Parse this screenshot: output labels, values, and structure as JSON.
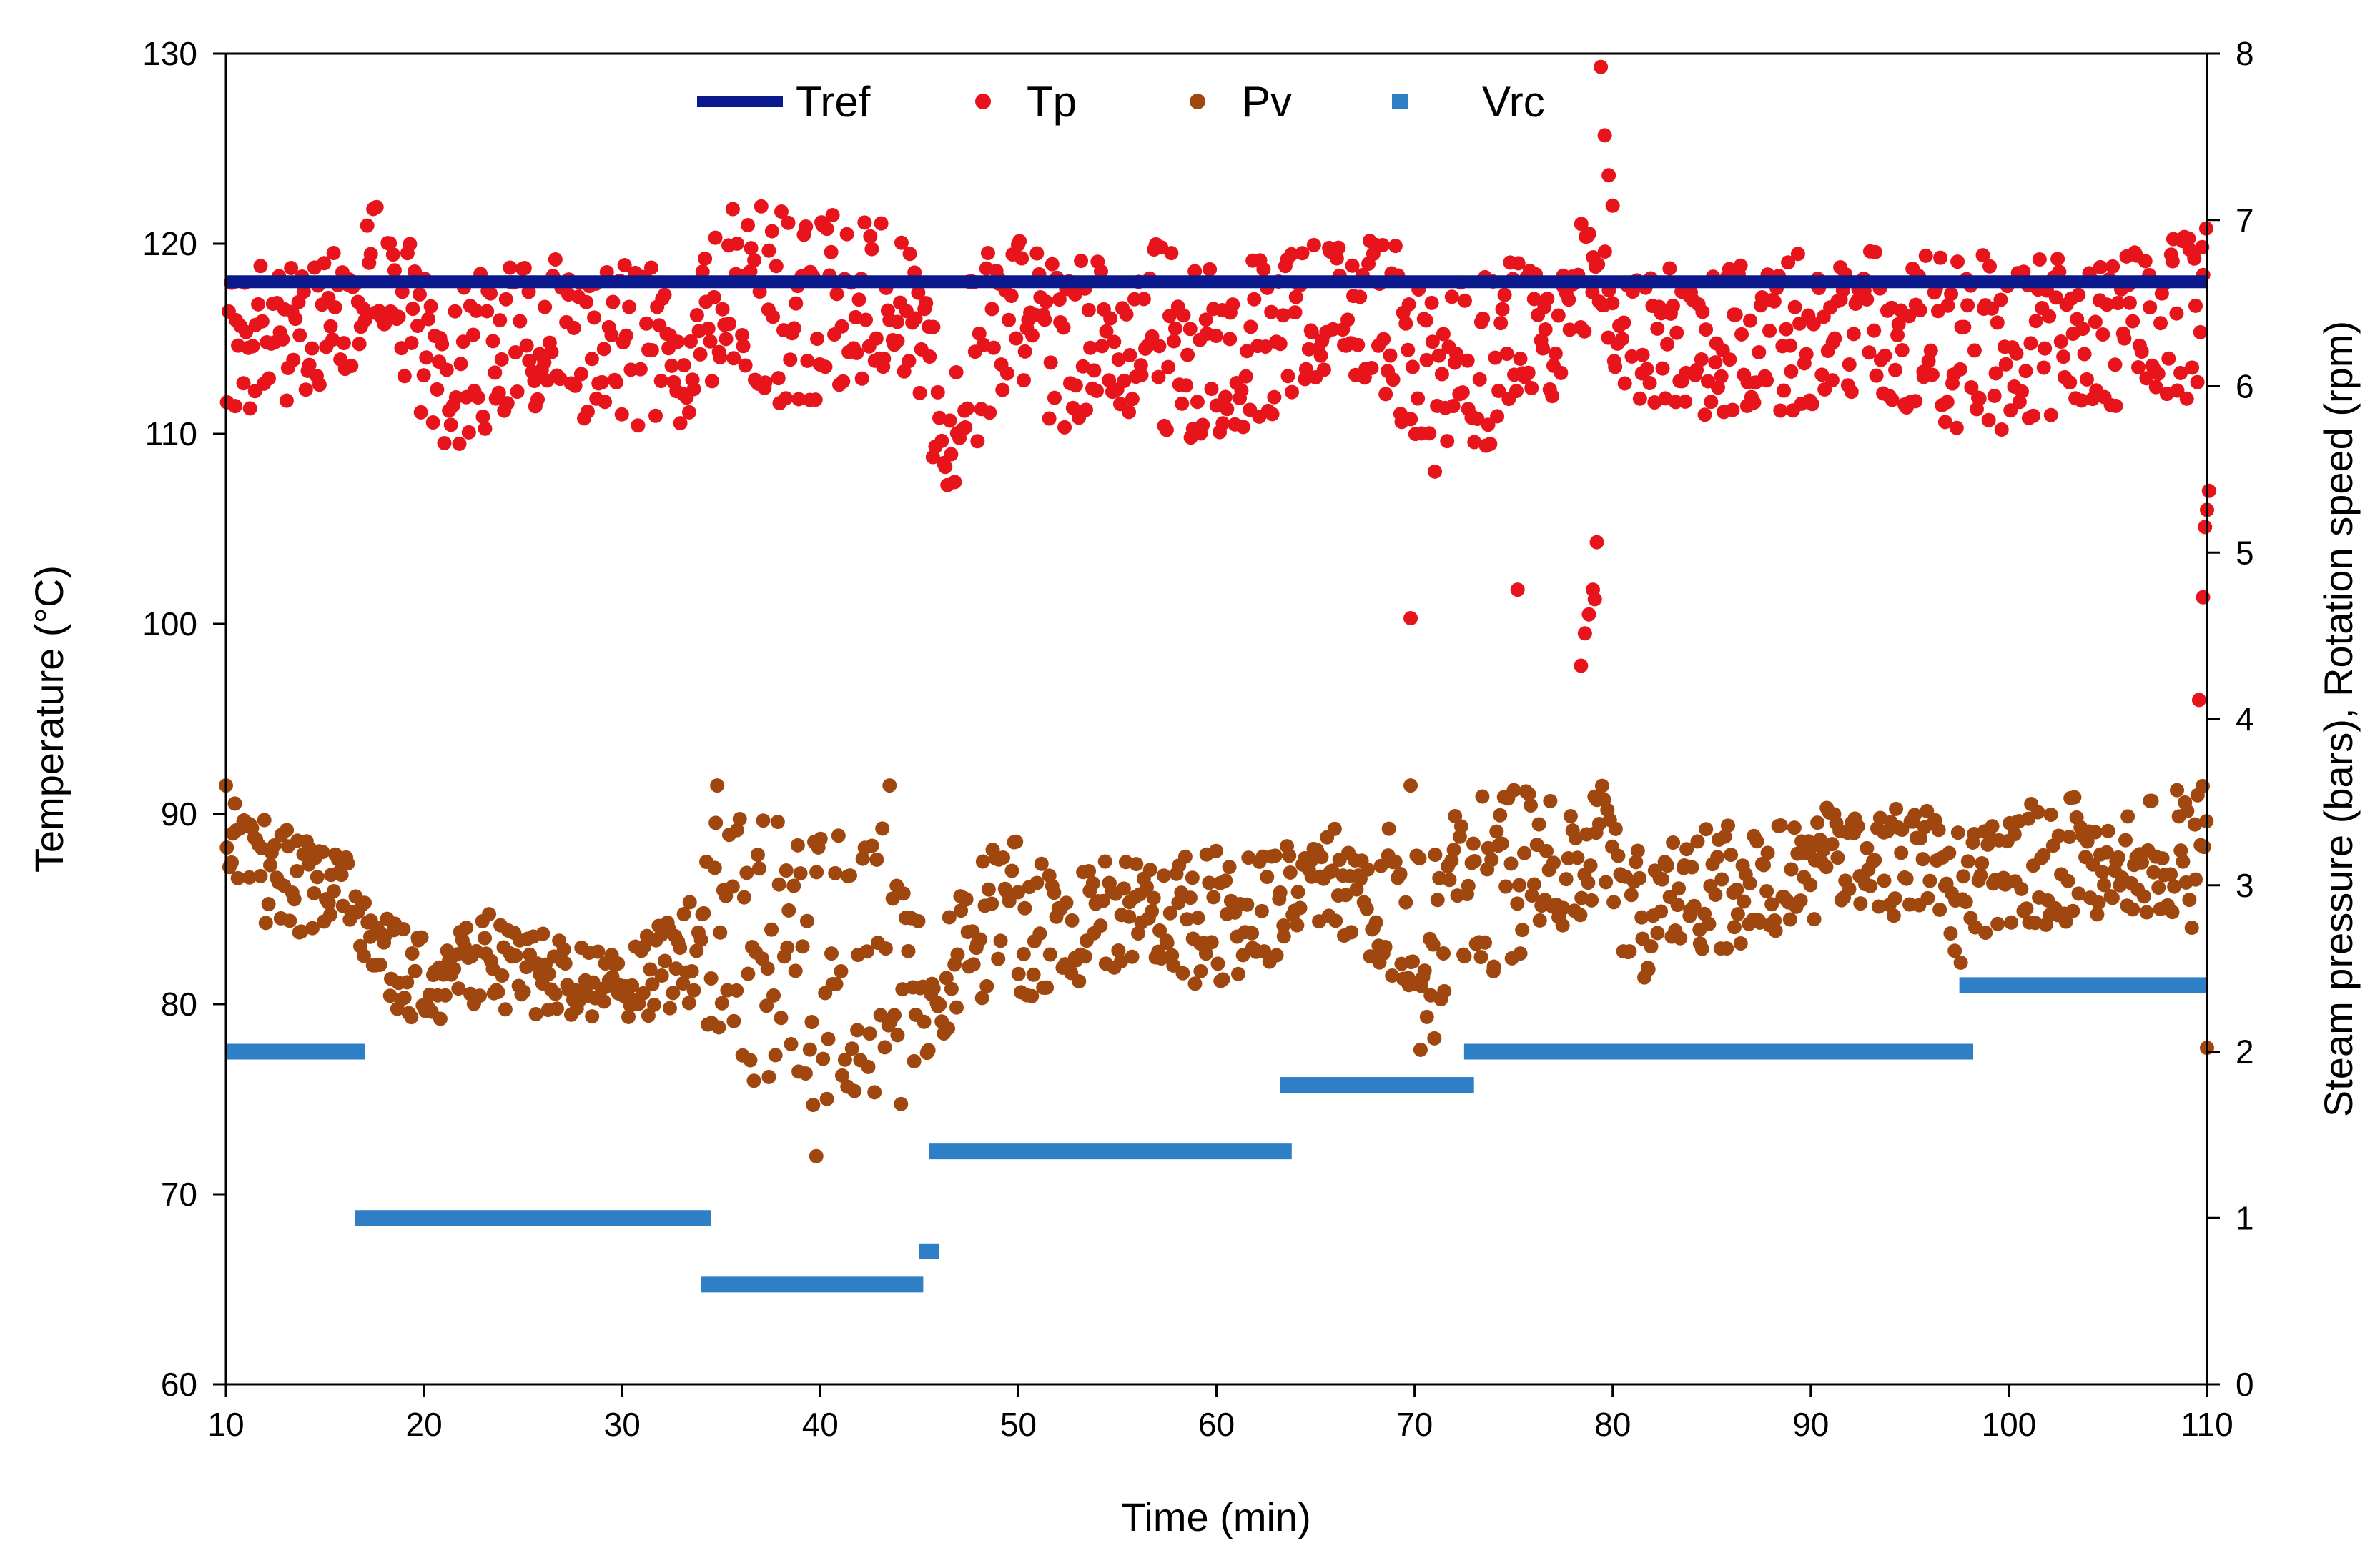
{
  "chart_data": {
    "type": "scatter",
    "title": "",
    "xlabel": "Time (min)",
    "ylabel_left": "Temperature (°C)",
    "ylabel_right": "Steam pressure  (bars),  Rotation  speed  (rpm)",
    "xlim": [
      10,
      110
    ],
    "ylim_left": [
      60,
      130
    ],
    "ylim_right": [
      0,
      8
    ],
    "x_ticks": [
      10,
      20,
      30,
      40,
      50,
      60,
      70,
      80,
      90,
      100,
      110
    ],
    "y_left_ticks": [
      60,
      70,
      80,
      90,
      100,
      110,
      120,
      130
    ],
    "y_right_ticks": [
      0,
      1,
      2,
      3,
      4,
      5,
      6,
      7,
      8
    ],
    "grid": false,
    "legend_position": "top",
    "legend": [
      {
        "name": "Tref",
        "marker": "line",
        "color": "#0a1a8c"
      },
      {
        "name": "Tp",
        "marker": "dot",
        "color": "#e8141c"
      },
      {
        "name": "Pv",
        "marker": "dot",
        "color": "#a0470f"
      },
      {
        "name": "Vrc",
        "marker": "square",
        "color": "#2f7fc6"
      }
    ],
    "series": [
      {
        "name": "Tref",
        "axis": "left",
        "kind": "line",
        "color": "#0a1a8c",
        "x": [
          10,
          110
        ],
        "y": [
          118,
          118
        ]
      },
      {
        "name": "Vrc",
        "axis": "right",
        "kind": "steps",
        "color": "#2f7fc6",
        "segments": [
          {
            "x0": 10,
            "x1": 17,
            "y": 2.0
          },
          {
            "x0": 16.5,
            "x1": 34.5,
            "y": 1.0
          },
          {
            "x0": 34,
            "x1": 45.2,
            "y": 0.6
          },
          {
            "x0": 45,
            "x1": 46,
            "y": 0.8
          },
          {
            "x0": 45.5,
            "x1": 63.8,
            "y": 1.4
          },
          {
            "x0": 63.2,
            "x1": 73,
            "y": 1.8
          },
          {
            "x0": 72.5,
            "x1": 98.2,
            "y": 2.0
          },
          {
            "x0": 97.5,
            "x1": 110,
            "y": 2.4
          }
        ]
      },
      {
        "name": "Tp",
        "axis": "left",
        "kind": "scatter",
        "color": "#e8141c",
        "envelope": [
          [
            10,
            110,
            118.5
          ],
          [
            11,
            111,
            119
          ],
          [
            13,
            111.5,
            119
          ],
          [
            15,
            112,
            120
          ],
          [
            16.5,
            113,
            118.5
          ],
          [
            17.5,
            115,
            122.5
          ],
          [
            19,
            113,
            121
          ],
          [
            20.5,
            109,
            117
          ],
          [
            22,
            109,
            118
          ],
          [
            24,
            111,
            119
          ],
          [
            26,
            111,
            119.5
          ],
          [
            28,
            110,
            118.5
          ],
          [
            30,
            110,
            119
          ],
          [
            32,
            110,
            119
          ],
          [
            34,
            111,
            118.5
          ],
          [
            35,
            114,
            122.5
          ],
          [
            37,
            112,
            122
          ],
          [
            39,
            111,
            122
          ],
          [
            41,
            112,
            121.5
          ],
          [
            43,
            113,
            121.5
          ],
          [
            45,
            112,
            120
          ],
          [
            46,
            106,
            114
          ],
          [
            47.5,
            107,
            118
          ],
          [
            49,
            110,
            121
          ],
          [
            51,
            110,
            120.5
          ],
          [
            53,
            110.5,
            119
          ],
          [
            55,
            111,
            121
          ],
          [
            57,
            110,
            120
          ],
          [
            59,
            109.5,
            119
          ],
          [
            61,
            110,
            119
          ],
          [
            63,
            111,
            119.5
          ],
          [
            65,
            112,
            120
          ],
          [
            67,
            113,
            120.5
          ],
          [
            69,
            111,
            120
          ],
          [
            71,
            108,
            117
          ],
          [
            73,
            109,
            118.5
          ],
          [
            75,
            110,
            119.5
          ],
          [
            77,
            112,
            119.5
          ],
          [
            79,
            116,
            122
          ],
          [
            80.5,
            112,
            118
          ],
          [
            83,
            111,
            119
          ],
          [
            86,
            111,
            119
          ],
          [
            89,
            111,
            119.5
          ],
          [
            92,
            112,
            120
          ],
          [
            95,
            111,
            120
          ],
          [
            98,
            110,
            119.5
          ],
          [
            101,
            110,
            119.5
          ],
          [
            104,
            111,
            120
          ],
          [
            107,
            111,
            120
          ],
          [
            110,
            112,
            121
          ]
        ],
        "outliers": [
          [
            69.8,
            100.3
          ],
          [
            75.2,
            101.8
          ],
          [
            78.4,
            97.8
          ],
          [
            78.6,
            99.5
          ],
          [
            78.8,
            100.5
          ],
          [
            79.0,
            101.8
          ],
          [
            79.1,
            101.3
          ],
          [
            79.2,
            104.3
          ],
          [
            79.4,
            129.3
          ],
          [
            79.6,
            125.7
          ],
          [
            79.8,
            123.6
          ],
          [
            80.0,
            122.0
          ],
          [
            109.6,
            96.0
          ],
          [
            109.8,
            101.4
          ],
          [
            109.9,
            105.1
          ],
          [
            110.0,
            106.0
          ],
          [
            110.1,
            107.0
          ]
        ]
      },
      {
        "name": "Pv",
        "axis": "left",
        "kind": "scatter",
        "color": "#a0470f",
        "envelope": [
          [
            10,
            85,
            91
          ],
          [
            12,
            84,
            90
          ],
          [
            14,
            83.5,
            89
          ],
          [
            16,
            83.5,
            88
          ],
          [
            17.5,
            81,
            85
          ],
          [
            19,
            79,
            84
          ],
          [
            21,
            79,
            83
          ],
          [
            23,
            79.5,
            85
          ],
          [
            25,
            79,
            84
          ],
          [
            27,
            79,
            83.5
          ],
          [
            29,
            79,
            83
          ],
          [
            31,
            79,
            83.5
          ],
          [
            33,
            80,
            85
          ],
          [
            34.5,
            78,
            90
          ],
          [
            36,
            76,
            90
          ],
          [
            38,
            75.5,
            90
          ],
          [
            40,
            74,
            91
          ],
          [
            42,
            75,
            90
          ],
          [
            44,
            74.5,
            91
          ],
          [
            45.5,
            77,
            82
          ],
          [
            47,
            79.5,
            86
          ],
          [
            49,
            80,
            89
          ],
          [
            51,
            80,
            88
          ],
          [
            53,
            81,
            87
          ],
          [
            55,
            82,
            88
          ],
          [
            57,
            82,
            88.5
          ],
          [
            59,
            81,
            88.5
          ],
          [
            61,
            81,
            88.5
          ],
          [
            63,
            82,
            88.5
          ],
          [
            64.5,
            85,
            88
          ],
          [
            66.5,
            83,
            90
          ],
          [
            68.5,
            82,
            89.5
          ],
          [
            70.5,
            78,
            89
          ],
          [
            72,
            82,
            90
          ],
          [
            74,
            81.5,
            91.5
          ],
          [
            76,
            82,
            91.5
          ],
          [
            78,
            84,
            91
          ],
          [
            79.5,
            86,
            91.5
          ],
          [
            81,
            81,
            88
          ],
          [
            83,
            82,
            89
          ],
          [
            86,
            83,
            89.5
          ],
          [
            89,
            84,
            89.5
          ],
          [
            92,
            85,
            91
          ],
          [
            95,
            84,
            90.5
          ],
          [
            97.5,
            82,
            90
          ],
          [
            100,
            84,
            90
          ],
          [
            103,
            84,
            91.5
          ],
          [
            106,
            85,
            91
          ],
          [
            110,
            83,
            91.5
          ]
        ],
        "outliers": [
          [
            39.8,
            72.0
          ],
          [
            70.3,
            77.6
          ],
          [
            71.0,
            78.2
          ],
          [
            110.0,
            77.7
          ],
          [
            10.0,
            91.5
          ],
          [
            43.5,
            91.5
          ],
          [
            69.8,
            91.5
          ],
          [
            34.8,
            91.5
          ]
        ]
      }
    ]
  }
}
